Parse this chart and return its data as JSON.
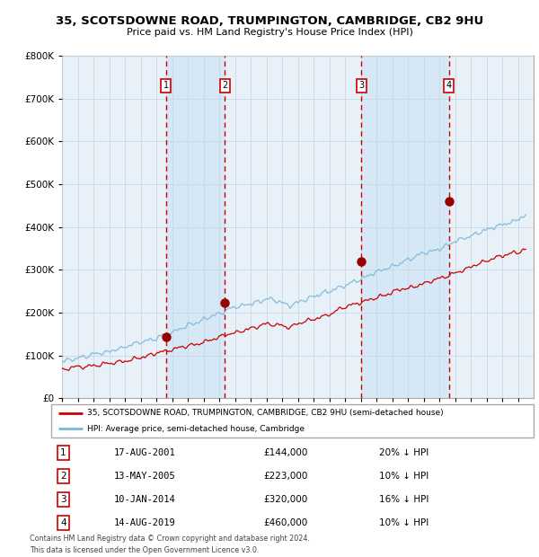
{
  "title1": "35, SCOTSDOWNE ROAD, TRUMPINGTON, CAMBRIDGE, CB2 9HU",
  "title2": "Price paid vs. HM Land Registry's House Price Index (HPI)",
  "legend_line1": "35, SCOTSDOWNE ROAD, TRUMPINGTON, CAMBRIDGE, CB2 9HU (semi-detached house)",
  "legend_line2": "HPI: Average price, semi-detached house, Cambridge",
  "transactions": [
    {
      "num": 1,
      "date": "17-AUG-2001",
      "year": 2001.622,
      "price": 144000,
      "pct": "20% ↓ HPI"
    },
    {
      "num": 2,
      "date": "13-MAY-2005",
      "year": 2005.36,
      "price": 223000,
      "pct": "10% ↓ HPI"
    },
    {
      "num": 3,
      "date": "10-JAN-2014",
      "year": 2014.03,
      "price": 320000,
      "pct": "16% ↓ HPI"
    },
    {
      "num": 4,
      "date": "14-AUG-2019",
      "year": 2019.622,
      "price": 460000,
      "pct": "10% ↓ HPI"
    }
  ],
  "hpi_line_color": "#7ab8d9",
  "price_line_color": "#cc0000",
  "dot_color": "#990000",
  "dashed_line_color": "#cc0000",
  "shade_color": "#d6e8f5",
  "grid_color": "#c8d8e8",
  "background_color": "#e8f0f8",
  "ylim": [
    0,
    800000
  ],
  "yticks": [
    0,
    100000,
    200000,
    300000,
    400000,
    500000,
    600000,
    700000,
    800000
  ],
  "xstart": 1995,
  "xend": 2025,
  "footer": "Contains HM Land Registry data © Crown copyright and database right 2024.\nThis data is licensed under the Open Government Licence v3.0."
}
